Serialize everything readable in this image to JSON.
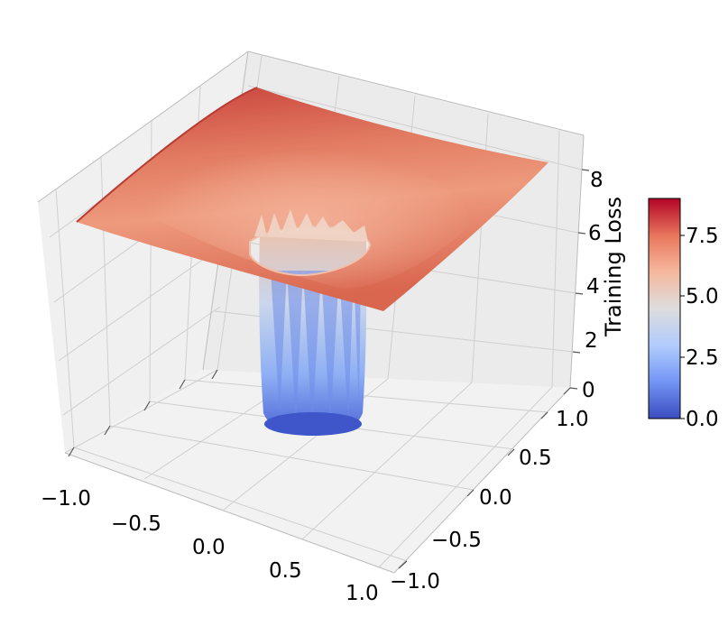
{
  "chart_data": {
    "type": "surface3d",
    "x_ticks": [
      "−1.0",
      "−0.5",
      "0.0",
      "0.5",
      "1.0"
    ],
    "y_ticks": [
      "−1.0",
      "−0.5",
      "0.0",
      "0.5",
      "1.0"
    ],
    "z_ticks": [
      "0",
      "2",
      "4",
      "6",
      "8"
    ],
    "zlabel": "Training Loss",
    "xlim": [
      -1,
      1
    ],
    "ylim": [
      -1,
      1
    ],
    "zlim": [
      0,
      9
    ],
    "colormap": "coolwarm",
    "colorbar": {
      "ticks": [
        "0.0",
        "2.5",
        "5.0",
        "7.5"
      ],
      "range": [
        0,
        9
      ],
      "colors": [
        "#3b4cc0",
        "#7396f5",
        "#b0cbfc",
        "#dddddd",
        "#f6b69b",
        "#e8765c",
        "#b40426"
      ]
    },
    "surface": {
      "outer_corner_values": [
        8.6,
        8.3,
        7.9,
        6.0
      ],
      "rim_value": 5.8,
      "hole_radius": 0.3,
      "bottom_value": 0.0
    },
    "grid": true
  }
}
